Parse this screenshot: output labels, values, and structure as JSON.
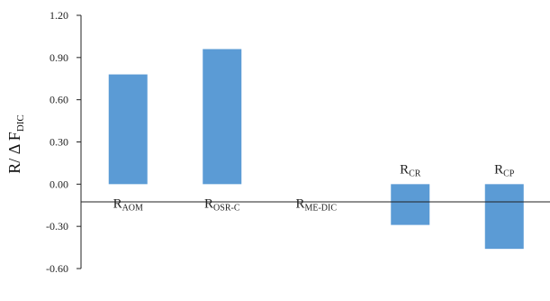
{
  "chart_data": {
    "type": "bar",
    "title": "",
    "xlabel": "",
    "ylabel": {
      "main": "R/ Δ F",
      "sub": "DIC"
    },
    "ylim": [
      -0.6,
      1.2
    ],
    "yticks": [
      "1.20",
      "0.90",
      "0.60",
      "0.30",
      "0.00",
      "-0.30",
      "-0.60"
    ],
    "grid": false,
    "legend": "none",
    "bar_color": "#5b9bd5",
    "categories": [
      {
        "main": "R",
        "sub": "AOM"
      },
      {
        "main": "R",
        "sub": "OSR-C"
      },
      {
        "main": "R",
        "sub": "ME-DIC"
      },
      {
        "main": "R",
        "sub": "CR"
      },
      {
        "main": "R",
        "sub": "CP"
      }
    ],
    "values": [
      0.78,
      0.96,
      0.0,
      -0.29,
      -0.46
    ]
  }
}
